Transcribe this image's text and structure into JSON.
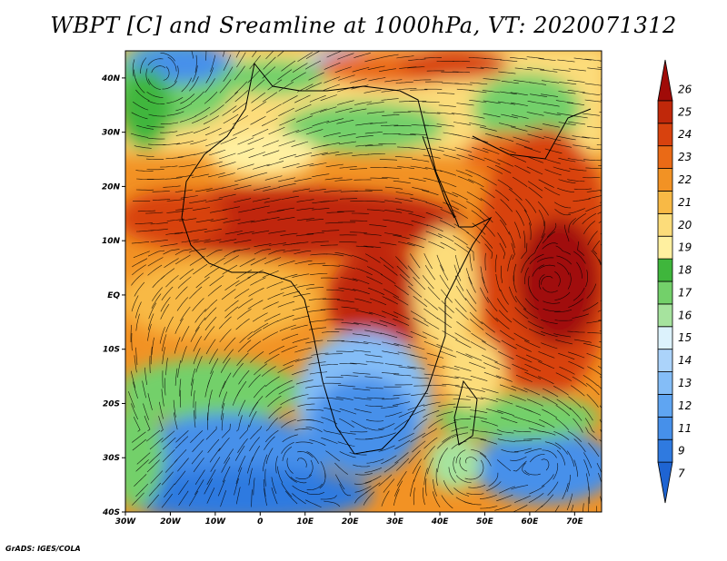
{
  "title": "WBPT [C] and Sreamline at 1000hPa, VT: 2020071312",
  "footer": "GrADS: IGES/COLA",
  "lon_ticks": [
    {
      "value": -30,
      "label": "30W"
    },
    {
      "value": -20,
      "label": "20W"
    },
    {
      "value": -10,
      "label": "10W"
    },
    {
      "value": 0,
      "label": "0"
    },
    {
      "value": 10,
      "label": "10E"
    },
    {
      "value": 20,
      "label": "20E"
    },
    {
      "value": 30,
      "label": "30E"
    },
    {
      "value": 40,
      "label": "40E"
    },
    {
      "value": 50,
      "label": "50E"
    },
    {
      "value": 60,
      "label": "60E"
    },
    {
      "value": 70,
      "label": "70E"
    }
  ],
  "lat_ticks": [
    {
      "value": 40,
      "label": "40N"
    },
    {
      "value": 30,
      "label": "30N"
    },
    {
      "value": 20,
      "label": "20N"
    },
    {
      "value": 10,
      "label": "10N"
    },
    {
      "value": 0,
      "label": "EQ"
    },
    {
      "value": -10,
      "label": "10S"
    },
    {
      "value": -20,
      "label": "20S"
    },
    {
      "value": -30,
      "label": "30S"
    },
    {
      "value": -40,
      "label": "40S"
    }
  ],
  "lon_range": [
    -30,
    76
  ],
  "lat_range": [
    -40,
    45
  ],
  "colorbar": {
    "levels": [
      "7",
      "9",
      "11",
      "12",
      "13",
      "14",
      "15",
      "16",
      "17",
      "18",
      "19",
      "20",
      "21",
      "22",
      "23",
      "24",
      "25",
      "26"
    ],
    "colors": [
      "#1e64d2",
      "#2f7ae0",
      "#4690ea",
      "#5fa5f2",
      "#84bdf7",
      "#abd3fa",
      "#dcf2fc",
      "#a6e39e",
      "#73d06a",
      "#3fb63c",
      "#fff0a0",
      "#fcdc7a",
      "#f8b945",
      "#f29224",
      "#ea6a16",
      "#d8420e",
      "#c0280a",
      "#a00b08"
    ]
  },
  "vortices": [
    {
      "lon": 8,
      "lat": -30,
      "label": "cyclone"
    },
    {
      "lon": 64,
      "lat": -30,
      "label": "cyclone"
    },
    {
      "lon": -22,
      "lat": 40,
      "label": "anticyclone"
    },
    {
      "lon": 46,
      "lat": -30,
      "label": "eddy"
    },
    {
      "lon": 64,
      "lat": 2,
      "label": "anticyclone"
    }
  ]
}
